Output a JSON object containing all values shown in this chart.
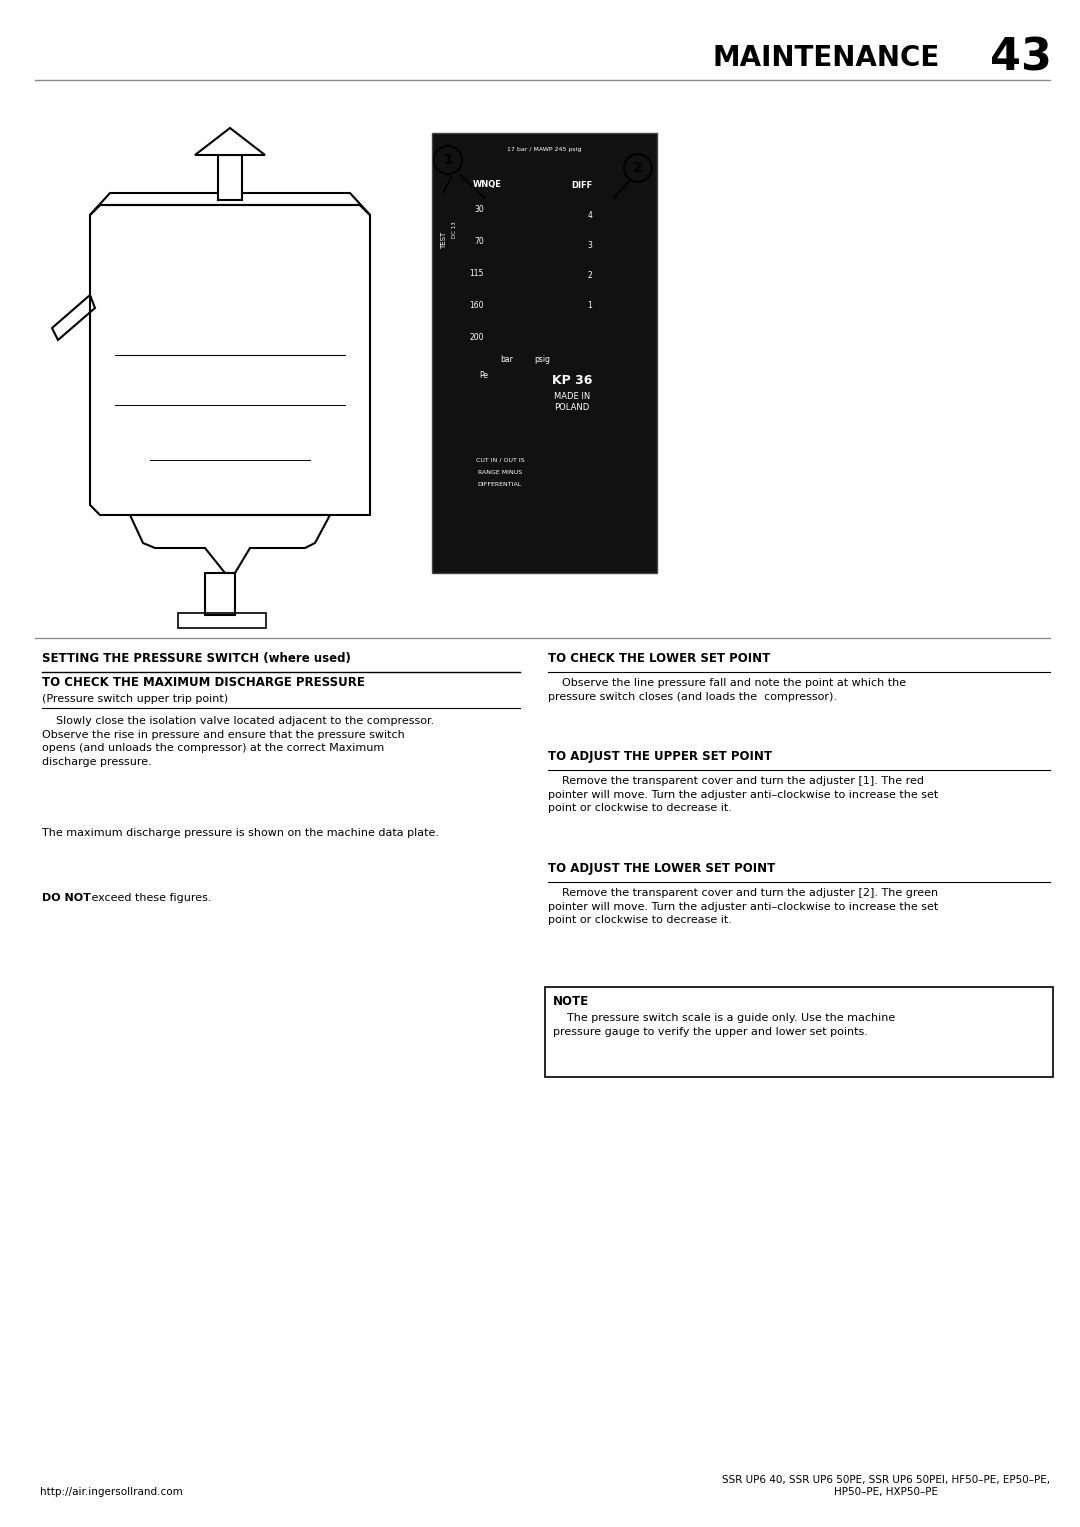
{
  "page_title": "MAINTENANCE",
  "page_number": "43",
  "footer_url": "http://air.ingersollrand.com",
  "footer_models": "SSR UP6 40, SSR UP6 50PE, SSR UP6 50PEI, HF50–PE, EP50–PE,\nHP50–PE, HXP50–PE",
  "section_left_title": "SETTING THE PRESSURE SWITCH (where used)",
  "section_left_sub1_bold": "TO CHECK THE MAXIMUM DISCHARGE PRESSURE",
  "section_left_sub1_normal": "(Pressure switch upper trip point)",
  "section_left_para1": "    Slowly close the isolation valve located adjacent to the compressor.\nObserve the rise in pressure and ensure that the pressure switch\nopens (and unloads the compressor) at the correct Maximum\ndischarge pressure.",
  "section_left_para2": "The maximum discharge pressure is shown on the machine data plate.",
  "section_left_para3_bold": "DO NOT",
  "section_left_para3_rest": " exceed these figures.",
  "section_right_title1": "TO CHECK THE LOWER SET POINT",
  "section_right_para1": "    Observe the line pressure fall and note the point at which the\npressure switch closes (and loads the  compressor).",
  "section_right_title2": "TO ADJUST THE UPPER SET POINT",
  "section_right_para2": "    Remove the transparent cover and turn the adjuster [1]. The red\npointer will move. Turn the adjuster anti–clockwise to increase the set\npoint or clockwise to decrease it.",
  "section_right_title3": "TO ADJUST THE LOWER SET POINT",
  "section_right_para3": "    Remove the transparent cover and turn the adjuster [2]. The green\npointer will move. Turn the adjuster anti–clockwise to increase the set\npoint or clockwise to decrease it.",
  "note_title": "NOTE",
  "note_text": "    The pressure switch scale is a guide only. Use the machine\npressure gauge to verify the upper and lower set points.",
  "bg_color": "#ffffff",
  "text_color": "#000000",
  "line_color": "#888888"
}
